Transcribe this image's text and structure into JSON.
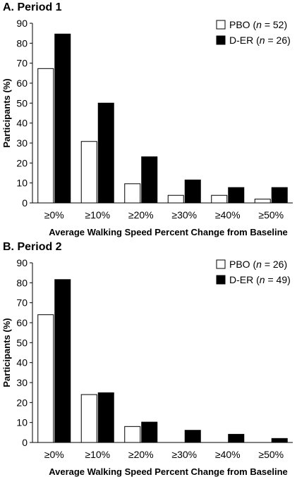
{
  "chart_data": [
    {
      "type": "bar",
      "title": "A. Period 1",
      "ylabel": "Participants (%)",
      "xlabel": "Average Walking Speed Percent Change from Baseline",
      "categories": [
        "≥0%",
        "≥10%",
        "≥20%",
        "≥30%",
        "≥40%",
        "≥50%"
      ],
      "ylim": [
        0,
        90
      ],
      "yticks": [
        0,
        10,
        20,
        30,
        40,
        50,
        60,
        70,
        80,
        90
      ],
      "legend_position": "top-right",
      "series": [
        {
          "name": "PBO",
          "n_label": "(n = 52)",
          "color": "#ffffff",
          "values": [
            67.3,
            30.8,
            9.6,
            3.8,
            3.8,
            1.9
          ]
        },
        {
          "name": "D-ER",
          "n_label": "(n = 26)",
          "color": "#000000",
          "values": [
            84.6,
            50.0,
            23.1,
            11.5,
            7.7,
            7.7
          ]
        }
      ]
    },
    {
      "type": "bar",
      "title": "B. Period 2",
      "ylabel": "Participants (%)",
      "xlabel": "Average Walking Speed Percent Change from Baseline",
      "categories": [
        "≥0%",
        "≥10%",
        "≥20%",
        "≥30%",
        "≥40%",
        "≥50%"
      ],
      "ylim": [
        0,
        90
      ],
      "yticks": [
        0,
        10,
        20,
        30,
        40,
        50,
        60,
        70,
        80,
        90
      ],
      "legend_position": "top-right",
      "series": [
        {
          "name": "PBO",
          "n_label": "(n = 26)",
          "color": "#ffffff",
          "values": [
            64.0,
            24.0,
            8.0,
            0,
            0,
            0
          ]
        },
        {
          "name": "D-ER",
          "n_label": "(n = 49)",
          "color": "#000000",
          "values": [
            81.6,
            24.9,
            10.2,
            6.1,
            4.1,
            2.0
          ]
        }
      ]
    }
  ]
}
